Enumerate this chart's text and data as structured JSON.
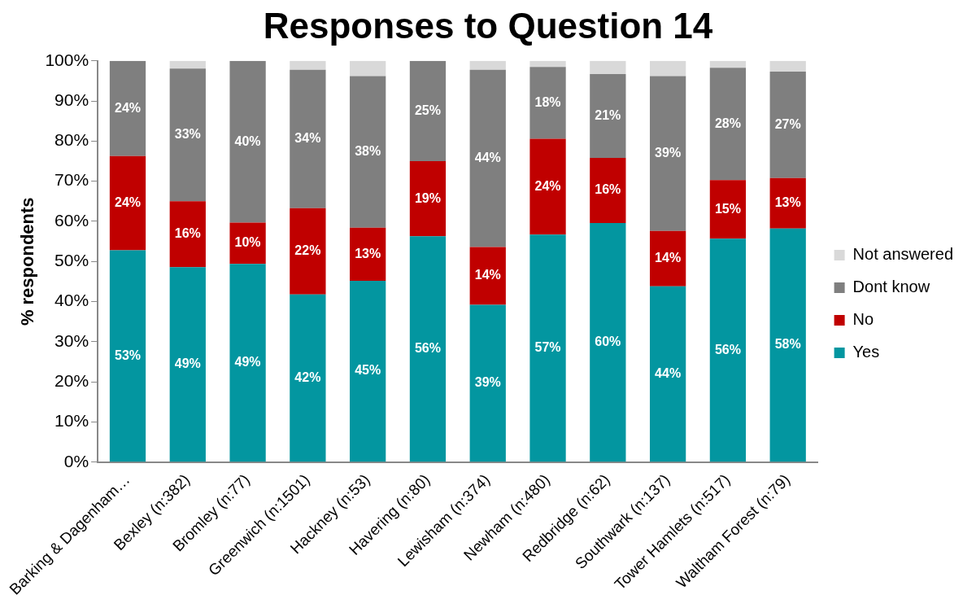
{
  "chart_data": {
    "type": "bar",
    "stacked": true,
    "title": "Responses to Question 14",
    "ylabel": "% respondents",
    "categories": [
      "Barking & Dagenham…",
      "Bexley (n:382)",
      "Bromley (n:77)",
      "Greenwich (n:1501)",
      "Hackney (n:53)",
      "Havering (n:80)",
      "Lewisham (n:374)",
      "Newham (n:480)",
      "Redbridge (n:62)",
      "Southwark (n:137)",
      "Tower Hamlets (n:517)",
      "Waltham Forest (n:79)"
    ],
    "series": [
      {
        "name": "Yes",
        "color": "#0396a0",
        "values": [
          52.8,
          48.6,
          49.4,
          41.8,
          45.2,
          56.3,
          39.2,
          56.7,
          59.6,
          43.8,
          55.7,
          58.2
        ],
        "value_labels": [
          "53%",
          "49%",
          "49%",
          "42%",
          "45%",
          "56%",
          "39%",
          "57%",
          "60%",
          "44%",
          "56%",
          "58%"
        ]
      },
      {
        "name": "No",
        "color": "#c00000",
        "values": [
          23.5,
          16.4,
          10.3,
          21.5,
          13.2,
          18.7,
          14.4,
          23.9,
          16.2,
          13.8,
          14.6,
          12.6
        ],
        "value_labels": [
          "24%",
          "16%",
          "10%",
          "22%",
          "13%",
          "19%",
          "14%",
          "24%",
          "16%",
          "14%",
          "15%",
          "13%"
        ]
      },
      {
        "name": "Dont know",
        "color": "#7f7f7f",
        "values": [
          23.7,
          33.1,
          40.3,
          34.5,
          37.8,
          25.0,
          44.2,
          17.9,
          20.9,
          38.6,
          28.0,
          26.5
        ],
        "value_labels": [
          "24%",
          "33%",
          "40%",
          "34%",
          "38%",
          "25%",
          "44%",
          "18%",
          "21%",
          "39%",
          "28%",
          "27%"
        ]
      },
      {
        "name": "Not answered",
        "color": "#d9d9d9",
        "values": [
          0,
          1.9,
          0,
          2.2,
          3.8,
          0,
          2.2,
          1.5,
          3.3,
          3.8,
          1.7,
          2.7
        ]
      }
    ],
    "ylim": [
      0,
      100
    ],
    "yticks": [
      {
        "value": 0,
        "label": "0%"
      },
      {
        "value": 10,
        "label": "10%"
      },
      {
        "value": 20,
        "label": "20%"
      },
      {
        "value": 30,
        "label": "30%"
      },
      {
        "value": 40,
        "label": "40%"
      },
      {
        "value": 50,
        "label": "50%"
      },
      {
        "value": 60,
        "label": "60%"
      },
      {
        "value": 70,
        "label": "70%"
      },
      {
        "value": 80,
        "label": "80%"
      },
      {
        "value": 90,
        "label": "90%"
      },
      {
        "value": 100,
        "label": "100%"
      }
    ],
    "grid": false,
    "legend": "right"
  }
}
